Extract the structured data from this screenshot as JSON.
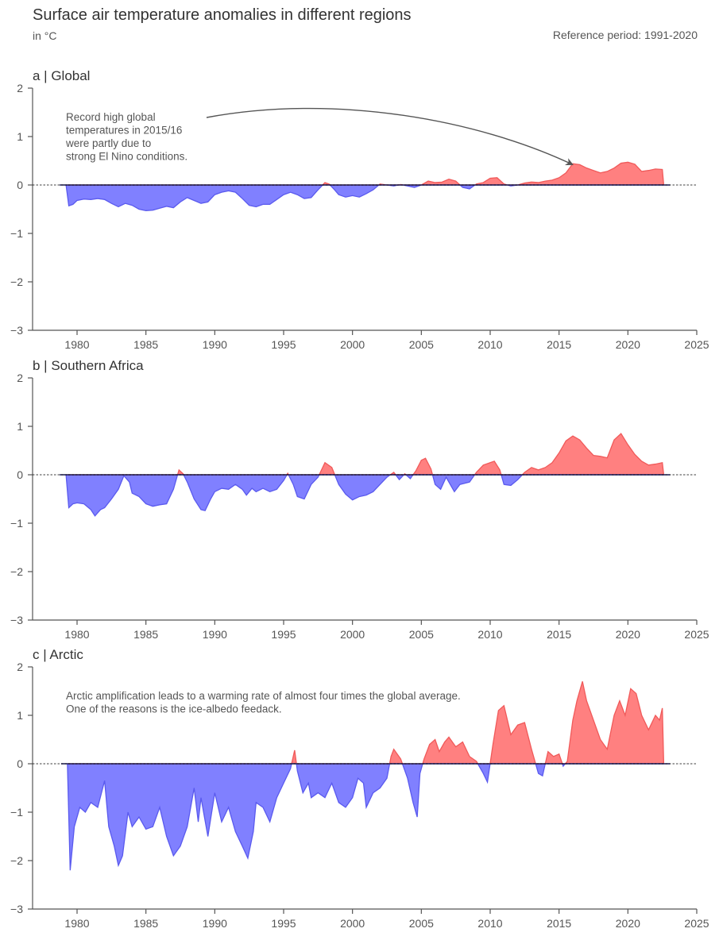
{
  "header": {
    "title": "Surface air temperature anomalies in different regions",
    "unit_note": "in °C",
    "reference_period": "Reference period: 1991-2020"
  },
  "colors": {
    "positive_fill": "#ff8080",
    "positive_line": "#f05a5a",
    "negative_fill": "#8080ff",
    "negative_line": "#5a5aee",
    "axis": "#555555",
    "baseline": "#000000"
  },
  "chart_data": [
    {
      "type": "area",
      "id": "global",
      "panel_label": "a | Global",
      "xlim": [
        1977.5,
        2025
      ],
      "ylim": [
        -3,
        2
      ],
      "xticks": [
        1980,
        1985,
        1990,
        1995,
        2000,
        2005,
        2010,
        2015,
        2020,
        2025
      ],
      "yticks": [
        2,
        1,
        0,
        -1,
        -2,
        -3
      ],
      "baseline": 0,
      "annotation": {
        "lines": [
          "Record high global",
          "temperatures in 2015/16",
          "were partly due to",
          "strong El Nino conditions."
        ],
        "arrow_to": [
          2016,
          0.42
        ]
      },
      "points": [
        [
          1979.2,
          0
        ],
        [
          1979.4,
          -0.43
        ],
        [
          1979.7,
          -0.4
        ],
        [
          1980,
          -0.32
        ],
        [
          1980.5,
          -0.29
        ],
        [
          1981,
          -0.3
        ],
        [
          1981.5,
          -0.28
        ],
        [
          1982,
          -0.3
        ],
        [
          1982.5,
          -0.38
        ],
        [
          1983,
          -0.45
        ],
        [
          1983.5,
          -0.38
        ],
        [
          1984,
          -0.42
        ],
        [
          1984.5,
          -0.5
        ],
        [
          1985,
          -0.53
        ],
        [
          1985.5,
          -0.52
        ],
        [
          1986,
          -0.48
        ],
        [
          1986.5,
          -0.44
        ],
        [
          1987,
          -0.47
        ],
        [
          1987.5,
          -0.35
        ],
        [
          1988,
          -0.26
        ],
        [
          1988.5,
          -0.32
        ],
        [
          1989,
          -0.38
        ],
        [
          1989.5,
          -0.35
        ],
        [
          1990,
          -0.2
        ],
        [
          1990.5,
          -0.15
        ],
        [
          1991,
          -0.12
        ],
        [
          1991.5,
          -0.15
        ],
        [
          1992,
          -0.28
        ],
        [
          1992.5,
          -0.42
        ],
        [
          1993,
          -0.45
        ],
        [
          1993.5,
          -0.4
        ],
        [
          1994,
          -0.4
        ],
        [
          1994.5,
          -0.3
        ],
        [
          1995,
          -0.2
        ],
        [
          1995.5,
          -0.15
        ],
        [
          1996,
          -0.2
        ],
        [
          1996.5,
          -0.28
        ],
        [
          1997,
          -0.26
        ],
        [
          1997.5,
          -0.1
        ],
        [
          1998,
          0.05
        ],
        [
          1998.3,
          0.02
        ],
        [
          1998.7,
          -0.1
        ],
        [
          1999,
          -0.2
        ],
        [
          1999.5,
          -0.25
        ],
        [
          2000,
          -0.22
        ],
        [
          2000.5,
          -0.25
        ],
        [
          2001,
          -0.18
        ],
        [
          2001.5,
          -0.1
        ],
        [
          2002,
          0.02
        ],
        [
          2002.5,
          0.0
        ],
        [
          2003,
          -0.02
        ],
        [
          2003.5,
          0.01
        ],
        [
          2004,
          -0.02
        ],
        [
          2004.5,
          -0.05
        ],
        [
          2005,
          0.0
        ],
        [
          2005.5,
          0.08
        ],
        [
          2006,
          0.05
        ],
        [
          2006.5,
          0.06
        ],
        [
          2007,
          0.12
        ],
        [
          2007.5,
          0.08
        ],
        [
          2008,
          -0.05
        ],
        [
          2008.5,
          -0.08
        ],
        [
          2009,
          0.02
        ],
        [
          2009.5,
          0.05
        ],
        [
          2010,
          0.14
        ],
        [
          2010.5,
          0.15
        ],
        [
          2011,
          0.02
        ],
        [
          2011.5,
          -0.02
        ],
        [
          2012,
          0.0
        ],
        [
          2012.5,
          0.04
        ],
        [
          2013,
          0.06
        ],
        [
          2013.5,
          0.05
        ],
        [
          2014,
          0.08
        ],
        [
          2014.5,
          0.1
        ],
        [
          2015,
          0.15
        ],
        [
          2015.5,
          0.25
        ],
        [
          2016,
          0.44
        ],
        [
          2016.5,
          0.42
        ],
        [
          2017,
          0.35
        ],
        [
          2017.5,
          0.3
        ],
        [
          2018,
          0.25
        ],
        [
          2018.5,
          0.28
        ],
        [
          2019,
          0.35
        ],
        [
          2019.5,
          0.45
        ],
        [
          2020,
          0.47
        ],
        [
          2020.5,
          0.43
        ],
        [
          2021,
          0.28
        ],
        [
          2021.5,
          0.3
        ],
        [
          2022,
          0.33
        ],
        [
          2022.5,
          0.32
        ],
        [
          2022.6,
          0
        ]
      ]
    },
    {
      "type": "area",
      "id": "southern-africa",
      "panel_label": "b | Southern Africa",
      "xlim": [
        1977.5,
        2025
      ],
      "ylim": [
        -3,
        2
      ],
      "xticks": [
        1980,
        1985,
        1990,
        1995,
        2000,
        2005,
        2010,
        2015,
        2020,
        2025
      ],
      "yticks": [
        2,
        1,
        0,
        -1,
        -2,
        -3
      ],
      "baseline": 0,
      "points": [
        [
          1979.2,
          0
        ],
        [
          1979.4,
          -0.68
        ],
        [
          1979.7,
          -0.6
        ],
        [
          1980,
          -0.58
        ],
        [
          1980.5,
          -0.6
        ],
        [
          1981,
          -0.72
        ],
        [
          1981.3,
          -0.85
        ],
        [
          1981.7,
          -0.72
        ],
        [
          1982,
          -0.68
        ],
        [
          1982.5,
          -0.5
        ],
        [
          1983,
          -0.3
        ],
        [
          1983.4,
          -0.02
        ],
        [
          1983.8,
          -0.15
        ],
        [
          1984,
          -0.38
        ],
        [
          1984.5,
          -0.45
        ],
        [
          1985,
          -0.6
        ],
        [
          1985.5,
          -0.65
        ],
        [
          1986,
          -0.62
        ],
        [
          1986.5,
          -0.6
        ],
        [
          1987,
          -0.3
        ],
        [
          1987.4,
          0.1
        ],
        [
          1987.7,
          0.02
        ],
        [
          1988,
          -0.15
        ],
        [
          1988.5,
          -0.5
        ],
        [
          1989,
          -0.72
        ],
        [
          1989.3,
          -0.74
        ],
        [
          1989.7,
          -0.5
        ],
        [
          1990,
          -0.35
        ],
        [
          1990.5,
          -0.28
        ],
        [
          1991,
          -0.3
        ],
        [
          1991.5,
          -0.2
        ],
        [
          1992,
          -0.3
        ],
        [
          1992.3,
          -0.42
        ],
        [
          1992.7,
          -0.28
        ],
        [
          1993,
          -0.35
        ],
        [
          1993.5,
          -0.28
        ],
        [
          1994,
          -0.35
        ],
        [
          1994.5,
          -0.3
        ],
        [
          1995,
          -0.12
        ],
        [
          1995.3,
          0.03
        ],
        [
          1995.7,
          -0.2
        ],
        [
          1996,
          -0.45
        ],
        [
          1996.5,
          -0.5
        ],
        [
          1997,
          -0.2
        ],
        [
          1997.5,
          -0.05
        ],
        [
          1998,
          0.25
        ],
        [
          1998.5,
          0.15
        ],
        [
          1999,
          -0.2
        ],
        [
          1999.5,
          -0.4
        ],
        [
          2000,
          -0.52
        ],
        [
          2000.5,
          -0.45
        ],
        [
          2001,
          -0.42
        ],
        [
          2001.5,
          -0.35
        ],
        [
          2002,
          -0.2
        ],
        [
          2002.5,
          -0.05
        ],
        [
          2003,
          0.05
        ],
        [
          2003.4,
          -0.1
        ],
        [
          2003.8,
          0.02
        ],
        [
          2004.2,
          -0.08
        ],
        [
          2004.6,
          0.08
        ],
        [
          2005,
          0.3
        ],
        [
          2005.3,
          0.34
        ],
        [
          2005.7,
          0.12
        ],
        [
          2006,
          -0.2
        ],
        [
          2006.4,
          -0.3
        ],
        [
          2006.8,
          -0.05
        ],
        [
          2007,
          -0.15
        ],
        [
          2007.4,
          -0.35
        ],
        [
          2007.8,
          -0.2
        ],
        [
          2008.5,
          -0.15
        ],
        [
          2009,
          0.05
        ],
        [
          2009.5,
          0.2
        ],
        [
          2010,
          0.25
        ],
        [
          2010.3,
          0.28
        ],
        [
          2010.7,
          0.1
        ],
        [
          2011,
          -0.2
        ],
        [
          2011.5,
          -0.22
        ],
        [
          2012,
          -0.1
        ],
        [
          2012.5,
          0.05
        ],
        [
          2013,
          0.15
        ],
        [
          2013.5,
          0.1
        ],
        [
          2014,
          0.15
        ],
        [
          2014.5,
          0.25
        ],
        [
          2015,
          0.45
        ],
        [
          2015.5,
          0.7
        ],
        [
          2016,
          0.8
        ],
        [
          2016.5,
          0.72
        ],
        [
          2017,
          0.55
        ],
        [
          2017.5,
          0.4
        ],
        [
          2018,
          0.38
        ],
        [
          2018.5,
          0.35
        ],
        [
          2019,
          0.72
        ],
        [
          2019.5,
          0.85
        ],
        [
          2020,
          0.62
        ],
        [
          2020.5,
          0.42
        ],
        [
          2021,
          0.28
        ],
        [
          2021.5,
          0.2
        ],
        [
          2022,
          0.22
        ],
        [
          2022.5,
          0.25
        ],
        [
          2022.6,
          0
        ]
      ]
    },
    {
      "type": "area",
      "id": "arctic",
      "panel_label": "c | Arctic",
      "xlim": [
        1977.5,
        2025
      ],
      "ylim": [
        -3,
        2
      ],
      "xticks": [
        1980,
        1985,
        1990,
        1995,
        2000,
        2005,
        2010,
        2015,
        2020,
        2025
      ],
      "yticks": [
        2,
        1,
        0,
        -1,
        -2,
        -3
      ],
      "baseline": 0,
      "annotation": {
        "lines": [
          "Arctic amplification leads to a warming rate of almost four times the global average.",
          "One of the reasons is the ice-albedo feedack."
        ]
      },
      "points": [
        [
          1979.3,
          0
        ],
        [
          1979.5,
          -2.2
        ],
        [
          1979.8,
          -1.3
        ],
        [
          1980.2,
          -0.9
        ],
        [
          1980.6,
          -1.0
        ],
        [
          1981,
          -0.8
        ],
        [
          1981.5,
          -0.9
        ],
        [
          1982,
          -0.35
        ],
        [
          1982.3,
          -1.3
        ],
        [
          1982.7,
          -1.7
        ],
        [
          1983,
          -2.1
        ],
        [
          1983.3,
          -1.9
        ],
        [
          1983.7,
          -1.0
        ],
        [
          1984,
          -1.3
        ],
        [
          1984.5,
          -1.1
        ],
        [
          1985,
          -1.35
        ],
        [
          1985.5,
          -1.3
        ],
        [
          1986,
          -0.9
        ],
        [
          1986.5,
          -1.5
        ],
        [
          1987,
          -1.9
        ],
        [
          1987.5,
          -1.7
        ],
        [
          1988,
          -1.3
        ],
        [
          1988.5,
          -0.5
        ],
        [
          1988.8,
          -1.2
        ],
        [
          1989,
          -0.7
        ],
        [
          1989.5,
          -1.5
        ],
        [
          1990,
          -0.6
        ],
        [
          1990.5,
          -1.2
        ],
        [
          1991,
          -0.9
        ],
        [
          1991.5,
          -1.4
        ],
        [
          1992,
          -1.7
        ],
        [
          1992.4,
          -1.95
        ],
        [
          1992.8,
          -1.4
        ],
        [
          1993,
          -0.8
        ],
        [
          1993.5,
          -0.9
        ],
        [
          1994,
          -1.2
        ],
        [
          1994.5,
          -0.7
        ],
        [
          1995,
          -0.4
        ],
        [
          1995.5,
          -0.1
        ],
        [
          1995.8,
          0.28
        ],
        [
          1996,
          -0.15
        ],
        [
          1996.4,
          -0.6
        ],
        [
          1996.8,
          -0.4
        ],
        [
          1997,
          -0.7
        ],
        [
          1997.5,
          -0.6
        ],
        [
          1998,
          -0.7
        ],
        [
          1998.5,
          -0.4
        ],
        [
          1999,
          -0.8
        ],
        [
          1999.5,
          -0.9
        ],
        [
          2000,
          -0.7
        ],
        [
          2000.4,
          -0.3
        ],
        [
          2000.8,
          -0.4
        ],
        [
          2001,
          -0.9
        ],
        [
          2001.5,
          -0.6
        ],
        [
          2002,
          -0.5
        ],
        [
          2002.5,
          -0.3
        ],
        [
          2002.8,
          0.15
        ],
        [
          2003,
          0.3
        ],
        [
          2003.5,
          0.1
        ],
        [
          2004,
          -0.3
        ],
        [
          2004.4,
          -0.8
        ],
        [
          2004.7,
          -1.1
        ],
        [
          2004.9,
          -0.2
        ],
        [
          2005.2,
          0.1
        ],
        [
          2005.6,
          0.4
        ],
        [
          2006,
          0.5
        ],
        [
          2006.3,
          0.25
        ],
        [
          2006.7,
          0.45
        ],
        [
          2007,
          0.55
        ],
        [
          2007.5,
          0.35
        ],
        [
          2008,
          0.45
        ],
        [
          2008.5,
          0.15
        ],
        [
          2009,
          0.05
        ],
        [
          2009.5,
          -0.2
        ],
        [
          2009.8,
          -0.38
        ],
        [
          2010.2,
          0.4
        ],
        [
          2010.6,
          1.1
        ],
        [
          2011,
          1.2
        ],
        [
          2011.5,
          0.6
        ],
        [
          2012,
          0.8
        ],
        [
          2012.5,
          0.85
        ],
        [
          2013,
          0.3
        ],
        [
          2013.5,
          -0.2
        ],
        [
          2013.8,
          -0.25
        ],
        [
          2014.2,
          0.25
        ],
        [
          2014.6,
          0.15
        ],
        [
          2015,
          0.2
        ],
        [
          2015.3,
          -0.05
        ],
        [
          2015.6,
          0.05
        ],
        [
          2016,
          0.9
        ],
        [
          2016.3,
          1.3
        ],
        [
          2016.7,
          1.7
        ],
        [
          2017,
          1.3
        ],
        [
          2017.5,
          0.9
        ],
        [
          2018,
          0.5
        ],
        [
          2018.5,
          0.3
        ],
        [
          2019,
          1.0
        ],
        [
          2019.4,
          1.3
        ],
        [
          2019.8,
          1.0
        ],
        [
          2020.2,
          1.55
        ],
        [
          2020.6,
          1.45
        ],
        [
          2021,
          1.0
        ],
        [
          2021.5,
          0.7
        ],
        [
          2022,
          1.0
        ],
        [
          2022.3,
          0.9
        ],
        [
          2022.5,
          1.15
        ],
        [
          2022.6,
          0
        ]
      ]
    }
  ]
}
